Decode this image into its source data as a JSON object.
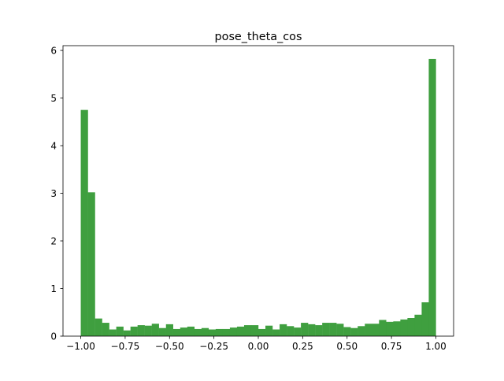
{
  "chart_data": {
    "type": "bar",
    "title": "pose_theta_cos",
    "xlabel": "",
    "ylabel": "",
    "xlim": [
      -1.1,
      1.1
    ],
    "ylim": [
      0,
      6.1
    ],
    "x_ticks": [
      -1.0,
      -0.75,
      -0.5,
      -0.25,
      0.0,
      0.25,
      0.5,
      0.75,
      1.0
    ],
    "x_tick_labels": [
      "−1.00",
      "−0.75",
      "−0.50",
      "−0.25",
      "0.00",
      "0.25",
      "0.50",
      "0.75",
      "1.00"
    ],
    "y_ticks": [
      0,
      1,
      2,
      3,
      4,
      5,
      6
    ],
    "y_tick_labels": [
      "0",
      "1",
      "2",
      "3",
      "4",
      "5",
      "6"
    ],
    "grid": false,
    "legend": "none",
    "bar_color": "#3f9f3f",
    "bin_start": -1.0,
    "bin_width": 0.04,
    "values": [
      4.75,
      3.02,
      0.37,
      0.28,
      0.14,
      0.2,
      0.12,
      0.2,
      0.23,
      0.22,
      0.26,
      0.17,
      0.25,
      0.15,
      0.18,
      0.2,
      0.15,
      0.17,
      0.14,
      0.15,
      0.15,
      0.18,
      0.2,
      0.23,
      0.23,
      0.15,
      0.22,
      0.14,
      0.25,
      0.21,
      0.18,
      0.28,
      0.25,
      0.23,
      0.28,
      0.28,
      0.26,
      0.19,
      0.17,
      0.21,
      0.26,
      0.26,
      0.34,
      0.3,
      0.31,
      0.35,
      0.38,
      0.45,
      0.71,
      5.82
    ]
  }
}
